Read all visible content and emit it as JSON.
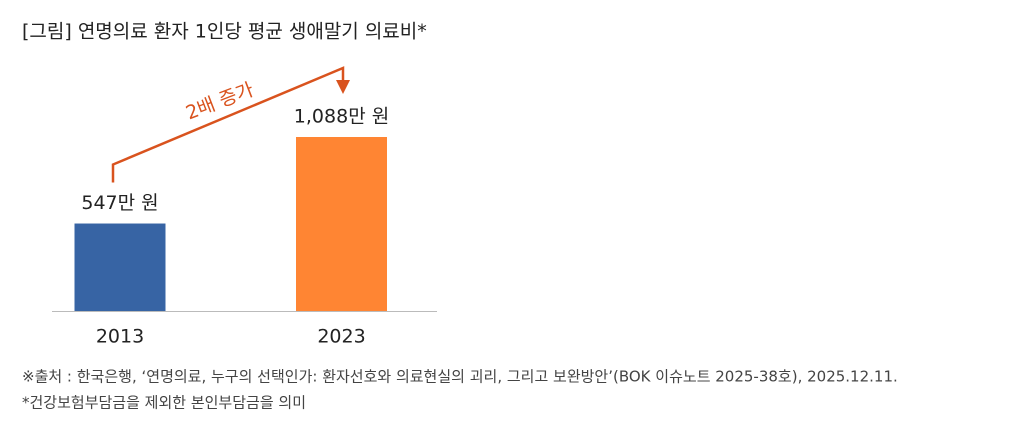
{
  "chart_data": {
    "type": "bar",
    "title": "[그림] 연명의료 환자 1인당 평균 생애말기 의료비*",
    "categories": [
      "2013",
      "2023"
    ],
    "series": [
      {
        "name": null,
        "colors": [
          "#3764a4",
          "#ff8533"
        ],
        "values": [
          547,
          1088
        ],
        "value_labels": [
          "547만 원",
          "1,088만 원"
        ]
      }
    ],
    "annotation": {
      "text": "2배 증가",
      "color": "#d9531e"
    },
    "notes": [
      "※출처 : 한국은행, ‘연명의료, 누구의 선택인가: 환자선호와 의료현실의 괴리, 그리고 보완방안’(BOK 이슈노트 2025-38호), 2025.12.11.",
      "*건강보험부담금을 제외한 본인부담금을 의미"
    ]
  }
}
